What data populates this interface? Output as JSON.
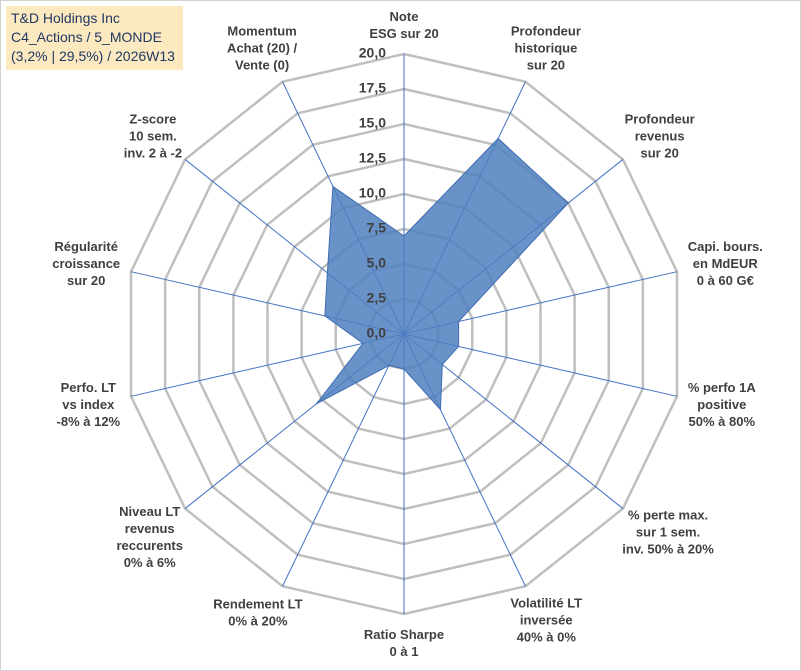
{
  "chart_data": {
    "type": "radar",
    "title": "T&D Holdings Inc\nC4_Actions / 5_MONDE\n(3,2% | 29,5%) / 2026W13",
    "categories": [
      "Note\nESG sur 20",
      "Profondeur\nhistorique\nsur 20",
      "Profondeur\nrevenus\nsur 20",
      "Capi. bours.\nen MdEUR\n0 à 60 G€",
      "% perfo 1A\npositive\n50% à 80%",
      "% perte max.\nsur 1 sem.\ninv. 50% à 20%",
      "Volatilité LT\ninversée\n40% à 0%",
      "Ratio Sharpe\n0 à 1",
      "Rendement LT\n0% à 20%",
      "Niveau LT\nrevenus\nreccurents\n0% à 6%",
      "Perfo. LT\nvs index\n-8% à 12%",
      "Régularité\ncroissance\nsur 20",
      "Z-score\n10 sem.\ninv. 2 à -2",
      "Momentum\nAchat (20) /\nVente (0)"
    ],
    "values": [
      7,
      15.5,
      15,
      4,
      4,
      3.5,
      6,
      2.5,
      2.5,
      8,
      3,
      5.8,
      7,
      11.7
    ],
    "color": "#4f7fbf",
    "ylim": [
      0,
      20
    ],
    "yticks": [
      {
        "value": 0,
        "label": "0,0"
      },
      {
        "value": 2.5,
        "label": "2,5"
      },
      {
        "value": 5,
        "label": "5,0"
      },
      {
        "value": 7.5,
        "label": "7,5"
      },
      {
        "value": 10,
        "label": "10,0"
      },
      {
        "value": 12.5,
        "label": "12,5"
      },
      {
        "value": 15,
        "label": "15,0"
      },
      {
        "value": 17.5,
        "label": "17,5"
      },
      {
        "value": 20,
        "label": "20,0"
      }
    ],
    "grid": true
  }
}
